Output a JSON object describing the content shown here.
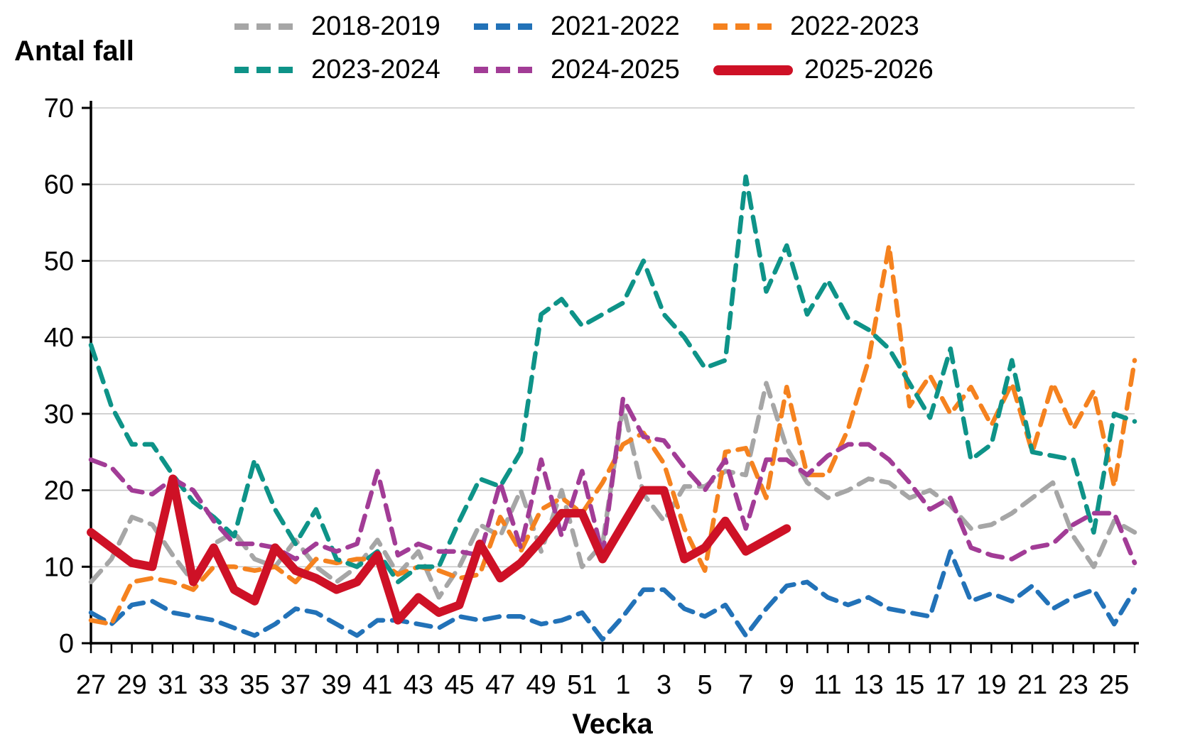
{
  "chart_data": {
    "type": "line",
    "title": "",
    "ylabel": "Antal fall",
    "xlabel": "Vecka",
    "ylim": [
      0,
      70
    ],
    "yticks": [
      0,
      10,
      20,
      30,
      40,
      50,
      60,
      70
    ],
    "grid": "horizontal-only",
    "legend_position": "top",
    "categories": [
      27,
      28,
      29,
      30,
      31,
      32,
      33,
      34,
      35,
      36,
      37,
      38,
      39,
      40,
      41,
      42,
      43,
      44,
      45,
      46,
      47,
      48,
      49,
      50,
      51,
      52,
      1,
      2,
      3,
      4,
      5,
      6,
      7,
      8,
      9,
      10,
      11,
      12,
      13,
      14,
      15,
      16,
      17,
      18,
      19,
      20,
      21,
      22,
      23,
      24,
      25,
      26
    ],
    "x_tick_positions": [
      0,
      2,
      4,
      6,
      8,
      10,
      12,
      14,
      16,
      18,
      20,
      22,
      24,
      26,
      28,
      30,
      32,
      34,
      36,
      38,
      40,
      42,
      44,
      46,
      48,
      50
    ],
    "x_tick_labels": [
      "27",
      "29",
      "31",
      "33",
      "35",
      "37",
      "39",
      "41",
      "43",
      "45",
      "47",
      "49",
      "51",
      "1",
      "3",
      "5",
      "7",
      "9",
      "11",
      "13",
      "15",
      "17",
      "19",
      "21",
      "23",
      "25"
    ],
    "axis_color": "#000000",
    "gridline_color": "#c8c8c8",
    "series": [
      {
        "name": "2018-2019",
        "color": "#A6A6A6",
        "style": "dashed",
        "values": [
          8,
          11,
          16.5,
          15.5,
          11.5,
          8,
          13,
          14.5,
          11,
          10,
          13.5,
          10,
          8,
          10,
          13.5,
          9,
          12,
          6,
          10,
          15.5,
          14,
          20,
          12,
          20,
          10,
          13,
          31,
          19.5,
          16,
          20.5,
          20.5,
          22.5,
          22,
          34,
          25.5,
          21,
          19,
          20,
          21.5,
          21,
          19,
          20,
          18,
          15,
          15.5,
          17,
          19,
          21,
          14,
          10,
          16,
          14.5
        ]
      },
      {
        "name": "2021-2022",
        "color": "#2272B8",
        "style": "dashed",
        "values": [
          4,
          2.5,
          5,
          5.5,
          4,
          3.5,
          3,
          2,
          1,
          2.5,
          4.5,
          4,
          2.5,
          1,
          3,
          3,
          2.5,
          2,
          3.5,
          3,
          3.5,
          3.5,
          2.5,
          3,
          4,
          0.5,
          3.5,
          7,
          7,
          4.5,
          3.5,
          5,
          1,
          4.5,
          7.5,
          8,
          6,
          5,
          6,
          4.5,
          4,
          3.5,
          12,
          5.5,
          6.5,
          5.5,
          7.5,
          4.5,
          6,
          7,
          2.5,
          7
        ]
      },
      {
        "name": "2022-2023",
        "color": "#F5821F",
        "style": "dashed",
        "values": [
          3,
          2.5,
          8,
          8.5,
          8,
          7,
          10,
          10,
          9.5,
          10,
          8,
          11,
          10.5,
          11,
          11,
          9,
          10,
          9.5,
          8.5,
          9,
          16.5,
          12,
          17.5,
          19,
          17,
          21,
          26,
          27.5,
          23.5,
          15,
          9.5,
          25,
          25.5,
          19,
          33.5,
          22,
          22,
          28,
          37,
          52,
          31,
          35,
          30,
          33.5,
          28.5,
          34,
          25,
          34,
          28,
          33,
          20.5,
          37
        ]
      },
      {
        "name": "2023-2024",
        "color": "#0E9388",
        "style": "dashed",
        "values": [
          39,
          31,
          26,
          26,
          22,
          18.5,
          16.5,
          14,
          24,
          17.5,
          13,
          17.5,
          11,
          10,
          12,
          8,
          10,
          10,
          16,
          21.5,
          20.5,
          25,
          43,
          45,
          41.5,
          43,
          44.5,
          50,
          43,
          40,
          36,
          37,
          61,
          46,
          52,
          43,
          47.5,
          42.5,
          41,
          38.5,
          34,
          29.5,
          38.5,
          24,
          26,
          37,
          25,
          24.5,
          24,
          14.5,
          30,
          29
        ]
      },
      {
        "name": "2024-2025",
        "color": "#A23C96",
        "style": "dashed",
        "values": [
          24,
          23,
          20,
          19.5,
          21.5,
          20,
          16,
          13,
          13,
          12.5,
          11,
          13,
          12,
          13,
          22.5,
          11.5,
          13,
          12,
          12,
          11.5,
          21,
          12.5,
          24,
          14,
          22.5,
          11.5,
          32,
          27,
          26.5,
          23,
          20,
          24,
          15,
          24,
          24,
          22,
          24.5,
          26,
          26,
          24,
          21,
          17.5,
          19,
          12.5,
          11.5,
          11,
          12.5,
          13,
          15.5,
          17,
          17,
          10.5
        ]
      },
      {
        "name": "2025-2026",
        "color": "#CE1126",
        "style": "solid",
        "values": [
          14.5,
          12.5,
          10.5,
          10,
          21.5,
          8,
          12.5,
          7,
          5.5,
          12.5,
          9.5,
          8.5,
          7,
          8,
          11.5,
          3,
          6,
          4,
          5,
          13,
          8.5,
          10.5,
          13.5,
          17,
          17,
          11,
          15.5,
          20,
          20,
          11,
          12.5,
          16,
          12,
          13.5,
          15,
          null,
          null,
          null,
          null,
          null,
          null,
          null,
          null,
          null,
          null,
          null,
          null,
          null,
          null,
          null,
          null,
          null
        ]
      }
    ]
  }
}
